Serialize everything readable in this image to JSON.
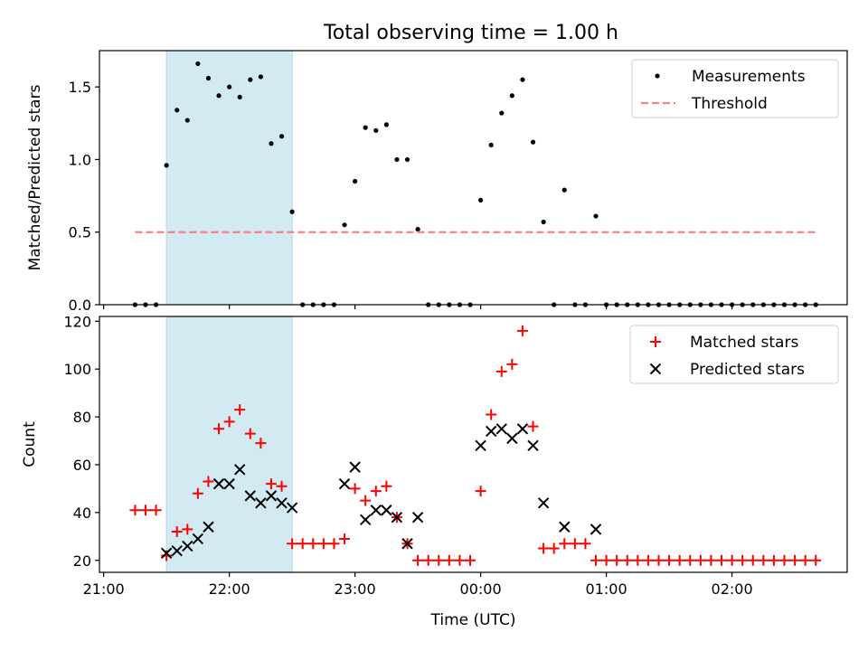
{
  "figure": {
    "title": "Total observing time = 1.00 h"
  },
  "chart_data": [
    {
      "type": "scatter",
      "ylabel": "Matched/Predicted stars",
      "xlim": [
        "20:58",
        "02:55"
      ],
      "ylim": [
        0,
        1.75
      ],
      "yticks": [
        0.0,
        0.5,
        1.0,
        1.5
      ],
      "ytick_labels": [
        "0.0",
        "0.5",
        "1.0",
        "1.5"
      ],
      "grid": false,
      "legend_position": "upper-right",
      "highlight_span": {
        "x0": "21:30",
        "x1": "22:30",
        "color": "#add8e6"
      },
      "series": [
        {
          "name": "Measurements",
          "marker": "dot",
          "color": "#000000",
          "x": [
            "21:15",
            "21:20",
            "21:25",
            "21:30",
            "21:35",
            "21:40",
            "21:45",
            "21:50",
            "21:55",
            "22:00",
            "22:05",
            "22:10",
            "22:15",
            "22:20",
            "22:25",
            "22:30",
            "22:35",
            "22:40",
            "22:45",
            "22:50",
            "22:55",
            "23:00",
            "23:05",
            "23:10",
            "23:15",
            "23:20",
            "23:25",
            "23:30",
            "23:35",
            "23:40",
            "23:45",
            "23:50",
            "23:55",
            "00:00",
            "00:05",
            "00:10",
            "00:15",
            "00:20",
            "00:25",
            "00:30",
            "00:35",
            "00:40",
            "00:45",
            "00:50",
            "00:55",
            "01:00",
            "01:05",
            "01:10",
            "01:15",
            "01:20",
            "01:25",
            "01:30",
            "01:35",
            "01:40",
            "01:45",
            "01:50",
            "01:55",
            "02:00",
            "02:05",
            "02:10",
            "02:15",
            "02:20",
            "02:25",
            "02:30",
            "02:35",
            "02:40"
          ],
          "y": [
            0,
            0,
            0,
            0.96,
            1.34,
            1.27,
            1.66,
            1.56,
            1.44,
            1.5,
            1.43,
            1.55,
            1.57,
            1.11,
            1.16,
            0.64,
            0,
            0,
            0,
            0,
            0.55,
            0.85,
            1.22,
            1.2,
            1.24,
            1.0,
            1.0,
            0.52,
            0,
            0,
            0,
            0,
            0,
            0.72,
            1.1,
            1.32,
            1.44,
            1.55,
            1.12,
            0.57,
            0,
            0.79,
            0,
            0,
            0.61,
            0,
            0,
            0,
            0,
            0,
            0,
            0,
            0,
            0,
            0,
            0,
            0,
            0,
            0,
            0,
            0,
            0,
            0,
            0,
            0,
            0
          ]
        },
        {
          "name": "Threshold",
          "style": "dashed",
          "color": "#ff7f7f",
          "x": [
            "21:15",
            "02:40"
          ],
          "y": [
            0.5,
            0.5
          ]
        }
      ]
    },
    {
      "type": "scatter",
      "xlabel": "Time (UTC)",
      "ylabel": "Count",
      "xlim": [
        "20:58",
        "02:55"
      ],
      "ylim": [
        15,
        122
      ],
      "xticks": [
        "21:00",
        "22:00",
        "23:00",
        "00:00",
        "01:00",
        "02:00"
      ],
      "yticks": [
        20,
        40,
        60,
        80,
        100,
        120
      ],
      "grid": false,
      "legend_position": "upper-right",
      "highlight_span": {
        "x0": "21:30",
        "x1": "22:30",
        "color": "#add8e6"
      },
      "series": [
        {
          "name": "Matched stars",
          "marker": "plus",
          "color": "#ff0000",
          "x": [
            "21:15",
            "21:20",
            "21:25",
            "21:30",
            "21:35",
            "21:40",
            "21:45",
            "21:50",
            "21:55",
            "22:00",
            "22:05",
            "22:10",
            "22:15",
            "22:20",
            "22:25",
            "22:30",
            "22:35",
            "22:40",
            "22:45",
            "22:50",
            "22:55",
            "23:00",
            "23:05",
            "23:10",
            "23:15",
            "23:20",
            "23:25",
            "23:30",
            "23:35",
            "23:40",
            "23:45",
            "23:50",
            "23:55",
            "00:00",
            "00:05",
            "00:10",
            "00:15",
            "00:20",
            "00:25",
            "00:30",
            "00:35",
            "00:40",
            "00:45",
            "00:50",
            "00:55",
            "01:00",
            "01:05",
            "01:10",
            "01:15",
            "01:20",
            "01:25",
            "01:30",
            "01:35",
            "01:40",
            "01:45",
            "01:50",
            "01:55",
            "02:00",
            "02:05",
            "02:10",
            "02:15",
            "02:20",
            "02:25",
            "02:30",
            "02:35",
            "02:40"
          ],
          "y": [
            41,
            41,
            41,
            22,
            32,
            33,
            48,
            53,
            75,
            78,
            83,
            73,
            69,
            52,
            51,
            27,
            27,
            27,
            27,
            27,
            29,
            50,
            45,
            49,
            51,
            38,
            27,
            20,
            20,
            20,
            20,
            20,
            20,
            49,
            81,
            99,
            102,
            116,
            76,
            25,
            25,
            27,
            27,
            27,
            20,
            20,
            20,
            20,
            20,
            20,
            20,
            20,
            20,
            20,
            20,
            20,
            20,
            20,
            20,
            20,
            20,
            20,
            20,
            20,
            20,
            20
          ]
        },
        {
          "name": "Predicted stars",
          "marker": "x",
          "color": "#000000",
          "x": [
            "21:30",
            "21:35",
            "21:40",
            "21:45",
            "21:50",
            "21:55",
            "22:00",
            "22:05",
            "22:10",
            "22:15",
            "22:20",
            "22:25",
            "22:30",
            "22:55",
            "23:00",
            "23:05",
            "23:10",
            "23:15",
            "23:20",
            "23:25",
            "23:30",
            "00:00",
            "00:05",
            "00:10",
            "00:15",
            "00:20",
            "00:25",
            "00:30",
            "00:40",
            "00:55"
          ],
          "y": [
            23,
            24,
            26,
            29,
            34,
            52,
            52,
            58,
            47,
            44,
            47,
            44,
            42,
            52,
            59,
            37,
            41,
            41,
            38,
            27,
            38,
            68,
            74,
            75,
            71,
            75,
            68,
            44,
            34,
            33
          ]
        }
      ]
    }
  ]
}
